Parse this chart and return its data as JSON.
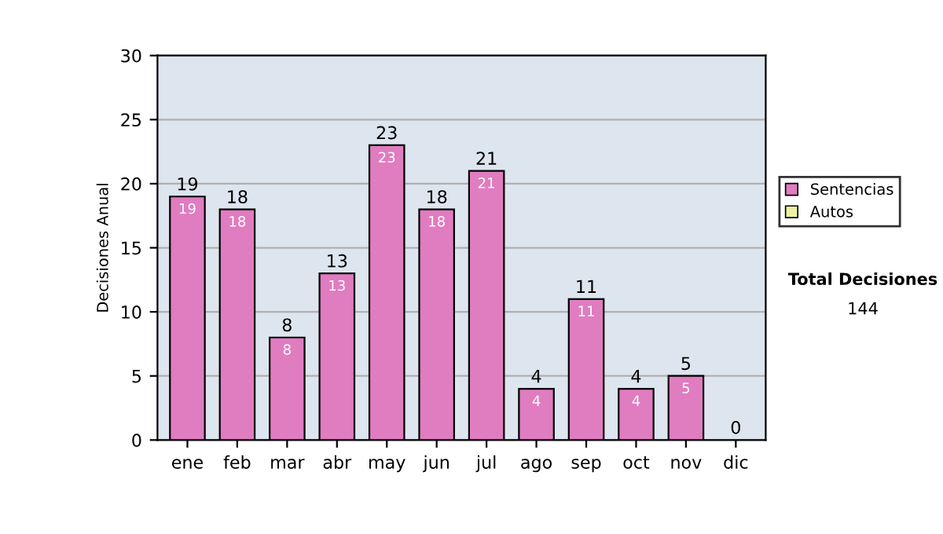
{
  "chart_data": {
    "type": "bar",
    "stacked": true,
    "ylabel": "Decisiones Anual",
    "categories": [
      "ene",
      "feb",
      "mar",
      "abr",
      "may",
      "jun",
      "jul",
      "ago",
      "sep",
      "oct",
      "nov",
      "dic"
    ],
    "series": [
      {
        "name": "Sentencias",
        "color": "#e07cc0",
        "values": [
          19,
          18,
          8,
          13,
          23,
          18,
          21,
          4,
          11,
          4,
          5,
          0
        ],
        "value_labels": [
          "19",
          "18",
          "8",
          "13",
          "23",
          "18",
          "21",
          "4",
          "11",
          "4",
          "5",
          null
        ]
      },
      {
        "name": "Autos",
        "color": "#eef2a0",
        "values": [
          0,
          0,
          0,
          0,
          0,
          0,
          0,
          0,
          0,
          0,
          0,
          0
        ]
      }
    ],
    "totals": [
      "19",
      "18",
      "8",
      "13",
      "23",
      "18",
      "21",
      "4",
      "11",
      "4",
      "5",
      "0"
    ],
    "ylim": [
      0,
      30
    ],
    "yticks": [
      0,
      5,
      10,
      15,
      20,
      25,
      30
    ],
    "grid": "y",
    "legend": "right",
    "annotations": [
      "Total Decisiones",
      "144"
    ]
  }
}
